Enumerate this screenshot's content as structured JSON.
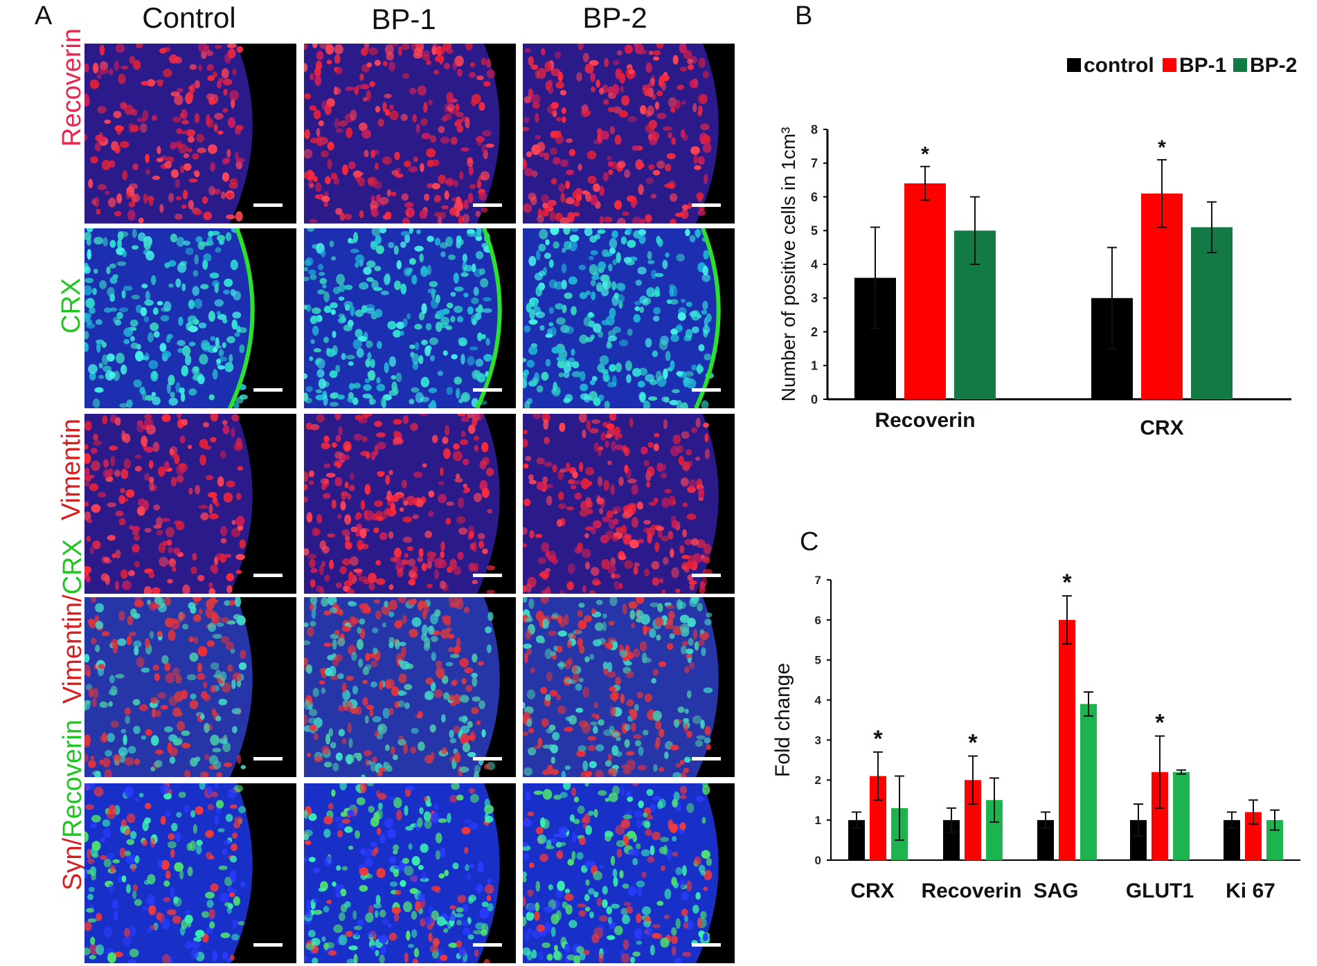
{
  "panel_letters": [
    "A",
    "B",
    "C"
  ],
  "micrograph_grid": {
    "columns": [
      "Control",
      "BP-1",
      "BP-2"
    ],
    "rows": [
      {
        "parts": [
          {
            "text": "Recoverin",
            "color": "#e8264e"
          }
        ],
        "style": "red"
      },
      {
        "parts": [
          {
            "text": "CRX",
            "color": "#1fc61f"
          }
        ],
        "style": "crx"
      },
      {
        "parts": [
          {
            "text": "Vimentin",
            "color": "#d62020"
          }
        ],
        "style": "red"
      },
      {
        "parts": [
          {
            "text": "Vimentin/",
            "color": "#d62020"
          },
          {
            "text": "CRX",
            "color": "#1fc61f"
          }
        ],
        "style": "merge"
      },
      {
        "parts": [
          {
            "text": "Syn/",
            "color": "#d62020"
          },
          {
            "text": "Recoverin",
            "color": "#1fc61f"
          }
        ],
        "style": "syn"
      }
    ]
  },
  "chart_data": [
    {
      "type": "bar",
      "panel": "B",
      "categories": [
        "Recoverin",
        "CRX"
      ],
      "series": [
        {
          "name": "control",
          "color": "#000000",
          "values": [
            3.6,
            3.0
          ],
          "errors": [
            1.5,
            1.5
          ]
        },
        {
          "name": "BP-1",
          "color": "#ff0000",
          "values": [
            6.4,
            6.1
          ],
          "errors": [
            0.5,
            1.0
          ]
        },
        {
          "name": "BP-2",
          "color": "#137a45",
          "values": [
            5.0,
            5.1
          ],
          "errors": [
            1.0,
            0.75
          ]
        }
      ],
      "significance": [
        {
          "category": "Recoverin",
          "series": "BP-1",
          "mark": "*"
        },
        {
          "category": "CRX",
          "series": "BP-1",
          "mark": "*"
        }
      ],
      "ylabel": "Number of positive cells in 1cm³",
      "ylim": [
        0,
        8
      ],
      "yticks": [
        0,
        1,
        2,
        3,
        4,
        5,
        6,
        7,
        8
      ],
      "legend_position": "top-right"
    },
    {
      "type": "bar",
      "panel": "C",
      "categories": [
        "CRX",
        "Recoverin",
        "SAG",
        "GLUT1",
        "Ki 67"
      ],
      "series": [
        {
          "name": "control",
          "color": "#000000",
          "values": [
            1.0,
            1.0,
            1.0,
            1.0,
            1.0
          ],
          "errors": [
            0.2,
            0.3,
            0.2,
            0.4,
            0.2
          ]
        },
        {
          "name": "BP-1",
          "color": "#ff0000",
          "values": [
            2.1,
            2.0,
            6.0,
            2.2,
            1.2
          ],
          "errors": [
            0.6,
            0.6,
            0.6,
            0.9,
            0.3
          ]
        },
        {
          "name": "BP-2",
          "color": "#1db34f",
          "values": [
            1.3,
            1.5,
            3.9,
            2.2,
            1.0
          ],
          "errors": [
            0.8,
            0.55,
            0.3,
            0.05,
            0.25
          ]
        }
      ],
      "significance": [
        {
          "category": "CRX",
          "series": "BP-1",
          "mark": "*"
        },
        {
          "category": "Recoverin",
          "series": "BP-1",
          "mark": "*"
        },
        {
          "category": "SAG",
          "series": "BP-1",
          "mark": "*"
        },
        {
          "category": "GLUT1",
          "series": "BP-1",
          "mark": "*"
        }
      ],
      "ylabel": "Fold change",
      "ylim": [
        0,
        7
      ],
      "yticks": [
        0,
        1,
        2,
        3,
        4,
        5,
        6,
        7
      ]
    }
  ]
}
